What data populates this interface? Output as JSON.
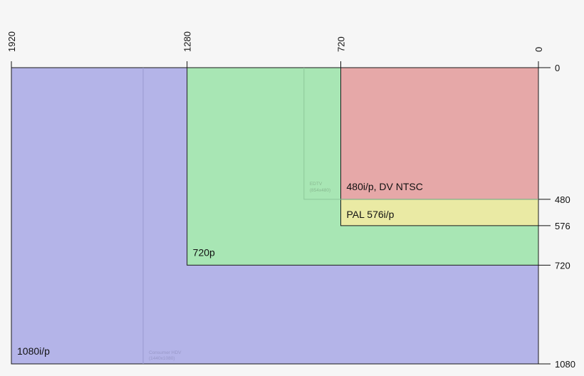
{
  "diagram": {
    "full_width": 1920,
    "full_height": 1080,
    "formats": [
      {
        "id": "1080",
        "label": "1080i/p",
        "width": 1920,
        "height": 1080,
        "fill": "#b4b4e8",
        "stroke": "#1a1a1a"
      },
      {
        "id": "720",
        "label": "720p",
        "width": 1280,
        "height": 720,
        "fill": "#a8e6b4",
        "stroke": "#1a1a1a"
      },
      {
        "id": "576",
        "label": "PAL 576i/p",
        "width": 720,
        "height": 576,
        "fill": "#eaeaa4",
        "stroke": "#1a1a1a"
      },
      {
        "id": "480",
        "label": "480i/p, DV NTSC",
        "width": 720,
        "height": 480,
        "fill": "#e6a8a8",
        "stroke": "#1a1a1a"
      }
    ],
    "faint_formats": [
      {
        "id": "hdv",
        "label": "Consumer HDV",
        "sublabel": "(1440x1080)",
        "width": 1440,
        "height": 1080,
        "stroke": "#9a9ad0",
        "text_color": "#9898c8"
      },
      {
        "id": "edtv",
        "label": "EDTV",
        "sublabel": "(854x480)",
        "width": 854,
        "height": 480,
        "stroke": "#8cc89a",
        "text_color": "#88b890"
      }
    ],
    "x_ticks": [
      "1920",
      "1280",
      "720",
      "0"
    ],
    "y_ticks": [
      "0",
      "480",
      "576",
      "720",
      "1080"
    ]
  }
}
